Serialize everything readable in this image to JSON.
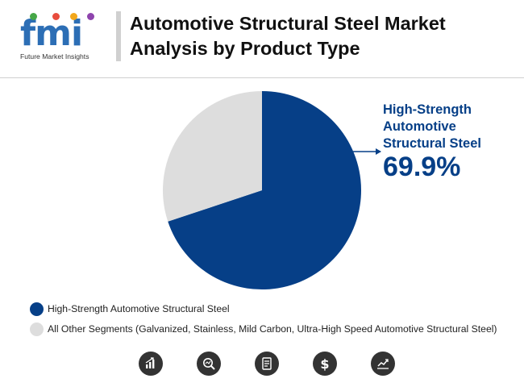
{
  "logo": {
    "letters": "fmi",
    "caption": "Future Market Insights",
    "colors": {
      "letters": "#2c6eb5",
      "dot1": "#46a747",
      "dot2": "#e84c3d",
      "dot3": "#f2a71c",
      "dot4": "#8e44ad"
    }
  },
  "header": {
    "title": "Automotive Structural Steel Market Analysis by Product Type"
  },
  "chart_data": {
    "type": "pie",
    "slices": [
      {
        "name": "High-Strength Automotive Structural Steel",
        "value": 69.9,
        "color": "#063f87"
      },
      {
        "name": "All Other Segments (Galvanized, Stainless, Mild Carbon, Ultra-High Speed Automotive Structural Steel)",
        "value": 30.1,
        "color": "#dddddd"
      }
    ],
    "annotation": {
      "label": "High-Strength Automotive Structural Steel",
      "value_text": "69.9%",
      "color": "#063f87"
    },
    "legend": {
      "placement": "bottom-left",
      "entries": [
        {
          "label": "High-Strength Automotive Structural Steel",
          "color": "#063f87"
        },
        {
          "label": "All Other Segments (Galvanized, Stainless, Mild Carbon, Ultra-High Speed Automotive Structural Steel)",
          "color": "#dddddd"
        }
      ]
    }
  },
  "footer_icons": [
    {
      "name": "bar-chart-icon"
    },
    {
      "name": "magnifier-chart-icon"
    },
    {
      "name": "report-document-icon"
    },
    {
      "name": "dollar-icon"
    },
    {
      "name": "trend-chart-icon"
    }
  ]
}
